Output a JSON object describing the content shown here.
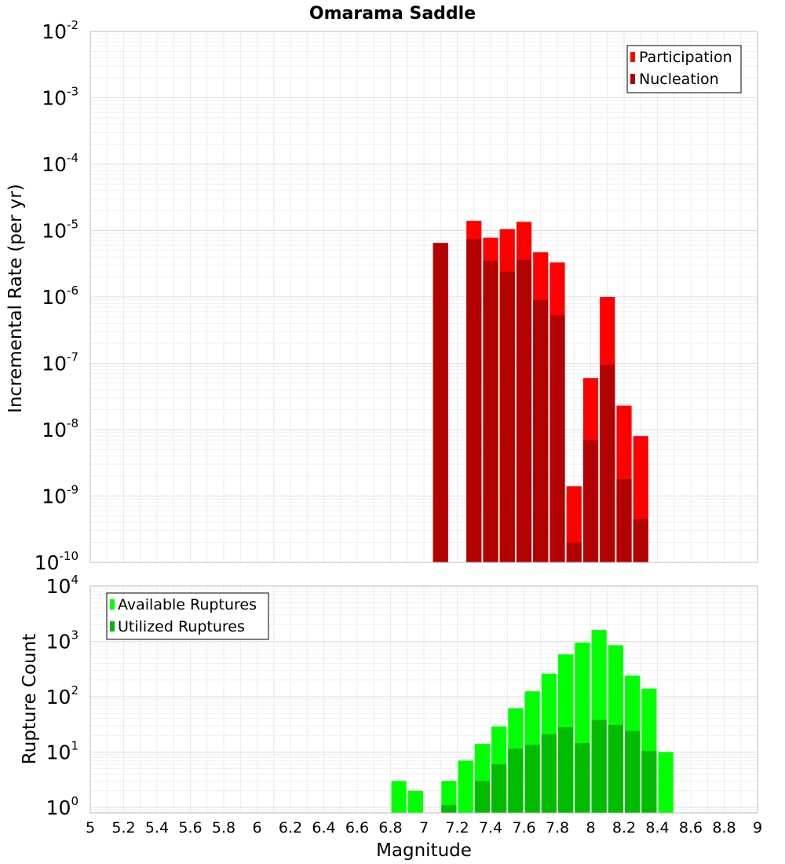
{
  "chart_data": [
    {
      "type": "bar",
      "title": "Omarama Saddle",
      "xlabel": "",
      "ylabel": "Incremental Rate (per yr)",
      "yscale": "log",
      "ylim_exponents": [
        -10,
        -2
      ],
      "y_tick_base": "10",
      "y_tick_exponents": [
        "-2",
        "-3",
        "-4",
        "-5",
        "-6",
        "-7",
        "-8",
        "-9",
        "-10"
      ],
      "grid": true,
      "legend_position": "top-right",
      "series": [
        {
          "name": "Participation",
          "color": "#ff0000",
          "x": [
            7.1,
            7.3,
            7.4,
            7.5,
            7.6,
            7.7,
            7.8,
            7.9,
            8.0,
            8.1,
            8.2,
            8.3
          ],
          "values": [
            6.5e-06,
            1.4e-05,
            7.8e-06,
            1.05e-05,
            1.35e-05,
            4.7e-06,
            3.3e-06,
            1.4e-09,
            6e-08,
            1e-06,
            2.3e-08,
            8e-09
          ]
        },
        {
          "name": "Nucleation",
          "color": "#b30000",
          "x": [
            7.1,
            7.3,
            7.4,
            7.5,
            7.6,
            7.7,
            7.8,
            7.9,
            8.0,
            8.1,
            8.2,
            8.3
          ],
          "values": [
            6.5e-06,
            7.5e-06,
            3.5e-06,
            2.4e-06,
            3.6e-06,
            9e-07,
            5.3e-07,
            2e-10,
            7e-09,
            9.5e-08,
            1.8e-09,
            4.5e-10
          ]
        }
      ]
    },
    {
      "type": "bar",
      "title": "",
      "xlabel": "Magnitude",
      "ylabel": "Rupture Count",
      "yscale": "log",
      "ylim_exponents": [
        -0.1,
        4
      ],
      "y_tick_base": "10",
      "y_tick_exponents": [
        "4",
        "3",
        "2",
        "1",
        "0"
      ],
      "grid": true,
      "legend_position": "top-left",
      "series": [
        {
          "name": "Available Ruptures",
          "color": "#00ff00",
          "x": [
            6.85,
            6.95,
            7.15,
            7.25,
            7.35,
            7.45,
            7.55,
            7.65,
            7.75,
            7.85,
            7.95,
            8.05,
            8.15,
            8.25,
            8.35,
            8.45
          ],
          "values": [
            3,
            2,
            3,
            7,
            14,
            29,
            62,
            125,
            260,
            580,
            950,
            1600,
            850,
            240,
            140,
            10
          ]
        },
        {
          "name": "Utilized Ruptures",
          "color": "#00bb00",
          "x": [
            7.15,
            7.35,
            7.45,
            7.55,
            7.65,
            7.75,
            7.85,
            7.95,
            8.05,
            8.15,
            8.25,
            8.35
          ],
          "values": [
            1.1,
            3,
            6,
            11.5,
            13.5,
            21,
            28,
            14.5,
            38,
            31,
            24,
            10.5
          ]
        }
      ],
      "xlim": [
        5,
        9
      ],
      "x_ticks": [
        "5",
        "5.2",
        "5.4",
        "5.6",
        "5.8",
        "6",
        "6.2",
        "6.4",
        "6.6",
        "6.8",
        "7",
        "7.2",
        "7.4",
        "7.6",
        "7.8",
        "8",
        "8.2",
        "8.4",
        "8.6",
        "8.8",
        "9"
      ]
    }
  ]
}
